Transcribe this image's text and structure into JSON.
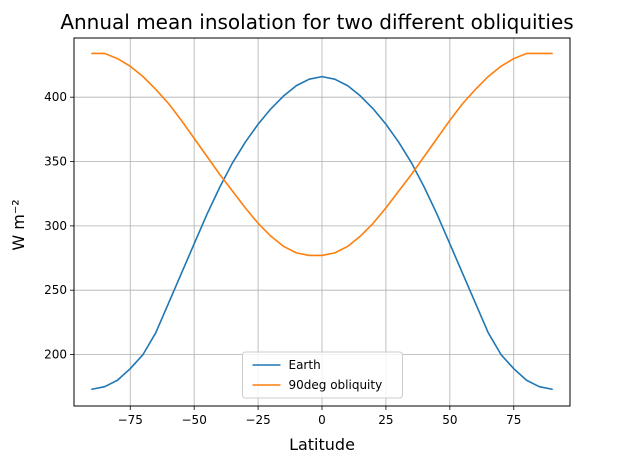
{
  "chart_data": {
    "type": "line",
    "title": "Annual mean insolation for two different obliquities",
    "xlabel": "Latitude",
    "ylabel": "W m⁻²",
    "xlim": [
      -97,
      97
    ],
    "ylim": [
      160,
      446
    ],
    "xticks": [
      -75,
      -50,
      -25,
      0,
      25,
      50,
      75
    ],
    "xtick_labels": [
      "−75",
      "−50",
      "−25",
      "0",
      "25",
      "50",
      "75"
    ],
    "yticks": [
      200,
      250,
      300,
      350,
      400
    ],
    "ytick_labels": [
      "200",
      "250",
      "300",
      "350",
      "400"
    ],
    "grid": true,
    "legend_position": "lower center",
    "series": [
      {
        "name": "Earth",
        "color": "#1f77b4",
        "x": [
          -90,
          -85,
          -80,
          -75,
          -70,
          -65,
          -60,
          -55,
          -50,
          -45,
          -40,
          -35,
          -30,
          -25,
          -20,
          -15,
          -10,
          -5,
          0,
          5,
          10,
          15,
          20,
          25,
          30,
          35,
          40,
          45,
          50,
          55,
          60,
          65,
          70,
          75,
          80,
          85,
          90
        ],
        "y": [
          173,
          175,
          180,
          189,
          200,
          217,
          240,
          263,
          286,
          309,
          330,
          349,
          365,
          379,
          391,
          401,
          409,
          414,
          416,
          414,
          409,
          401,
          391,
          379,
          365,
          349,
          330,
          309,
          286,
          263,
          240,
          217,
          200,
          189,
          180,
          175,
          173
        ]
      },
      {
        "name": "90deg obliquity",
        "color": "#ff7f0e",
        "x": [
          -90,
          -85,
          -80,
          -75,
          -70,
          -65,
          -60,
          -55,
          -50,
          -45,
          -40,
          -35,
          -30,
          -25,
          -20,
          -15,
          -10,
          -5,
          0,
          5,
          10,
          15,
          20,
          25,
          30,
          35,
          40,
          45,
          50,
          55,
          60,
          65,
          70,
          75,
          80,
          85,
          90
        ],
        "y": [
          434,
          434,
          430,
          424,
          416,
          406,
          395,
          382,
          368,
          354,
          340,
          327,
          314,
          302,
          292,
          284,
          279,
          277,
          277,
          279,
          284,
          292,
          302,
          314,
          327,
          340,
          354,
          368,
          382,
          395,
          406,
          416,
          424,
          430,
          434,
          434,
          434
        ]
      }
    ]
  }
}
